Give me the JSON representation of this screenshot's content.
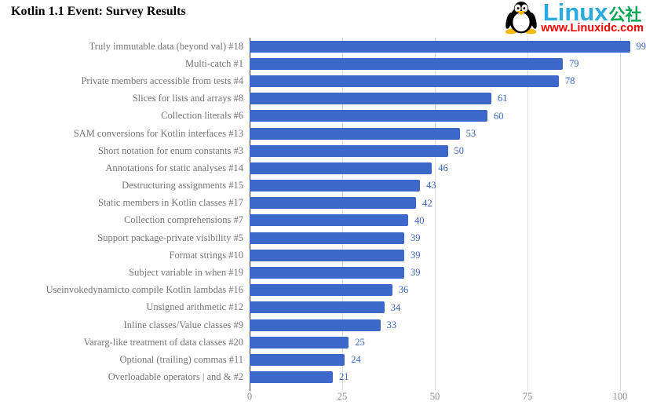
{
  "header": {
    "title": "Kotlin 1.1 Event: Survey Results"
  },
  "logo": {
    "penguin_icon": "tux-penguin",
    "brand": "Linux",
    "brand_suffix": "公社",
    "url": "www.Linuxidc.com",
    "brand_color": "#29AAE1",
    "suffix_color": "#00A651",
    "url_color": "#FE0000"
  },
  "chart_data": {
    "type": "bar",
    "orientation": "horizontal",
    "title": "Kotlin 1.1 Event: Survey Results",
    "xlabel": "",
    "ylabel": "",
    "xlim": [
      0,
      100
    ],
    "x_ticks": [
      "0",
      "25",
      "50",
      "75",
      "100"
    ],
    "grid": true,
    "legend": "none",
    "value_labels": true,
    "categories": [
      "Truly immutable data (beyond val) #18",
      "Multi-catch #1",
      "Private members accessible from tests #4",
      "Slices for lists and arrays #8",
      "Collection literals #6",
      "SAM conversions for Kotlin interfaces #13",
      "Short notation for enum constants #3",
      "Annotations for static analyses #14",
      "Destructuring assignments #15",
      "Static members in Kotlin classes #17",
      "Collection comprehensions #7",
      "Support package-private visibility #5",
      "Format strings #10",
      "Subject variable in when #19",
      "Useinvokedynamicto compile Kotlin lambdas #16",
      "Unsigned arithmetic #12",
      "Inline classes/Value classes #9",
      "Vararg-like treatment of data classes #20",
      "Optional (trailing) commas #11",
      "Overloadable operators | and & #2"
    ],
    "values": [
      99,
      79,
      78,
      61,
      60,
      53,
      50,
      46,
      43,
      42,
      40,
      39,
      39,
      39,
      36,
      34,
      33,
      25,
      24,
      21
    ],
    "bar_color": "#3B68C9",
    "value_label_color": "#3A66C4",
    "category_label_color": "#757575",
    "tick_label_color": "#8E8E8E",
    "gridline_color": "#DCDCDC",
    "zero_axis_color": "#333333"
  }
}
